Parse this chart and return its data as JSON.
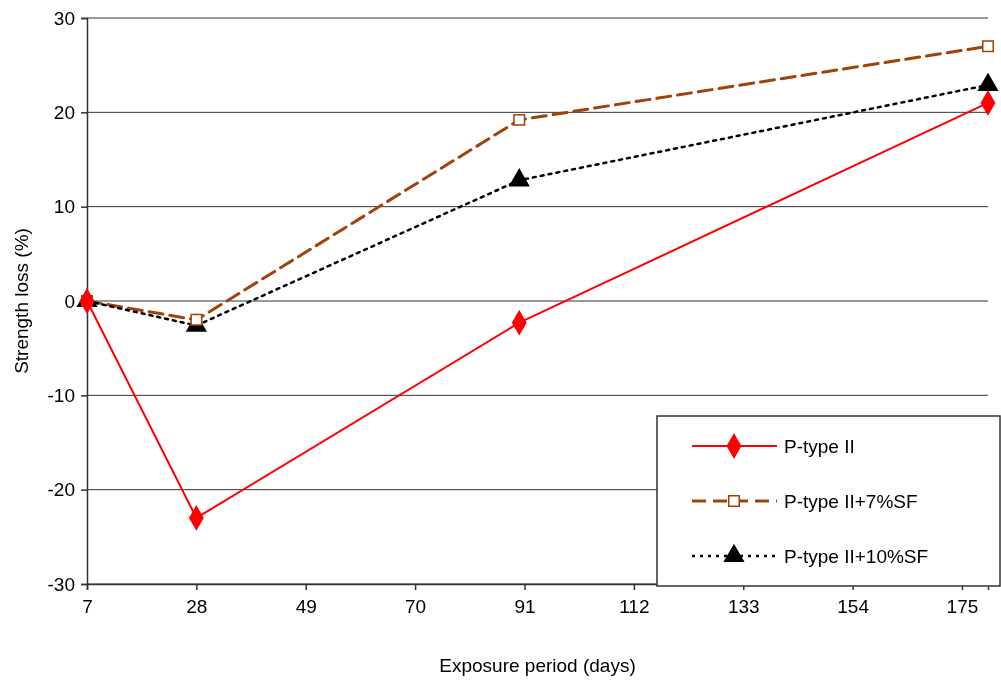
{
  "chart_data": {
    "type": "line",
    "xlabel": "Exposure period (days)",
    "ylabel": "Strength loss (%)",
    "x": [
      7,
      28,
      90,
      180
    ],
    "xlim": [
      7,
      180
    ],
    "xticks": [
      7,
      28,
      49,
      70,
      91,
      112,
      133,
      154,
      175
    ],
    "ylim": [
      -30,
      30
    ],
    "yticks": [
      -30,
      -20,
      -10,
      0,
      10,
      20,
      30
    ],
    "grid": "y",
    "legend": "bottom right",
    "series": [
      {
        "name": "P-type II",
        "color": "#ff0000",
        "values": [
          0,
          -23,
          -2.3,
          21
        ],
        "marker": "diamond",
        "line_style": "solid"
      },
      {
        "name": "P-type II+7%SF",
        "color": "#a0420a",
        "values": [
          0,
          -2,
          19.2,
          27
        ],
        "marker": "square",
        "line_style": "dashed"
      },
      {
        "name": "P-type II+10%SF",
        "color": "#000000",
        "values": [
          0,
          -2.6,
          12.8,
          22.9
        ],
        "marker": "triangle",
        "line_style": "dotted"
      }
    ]
  }
}
